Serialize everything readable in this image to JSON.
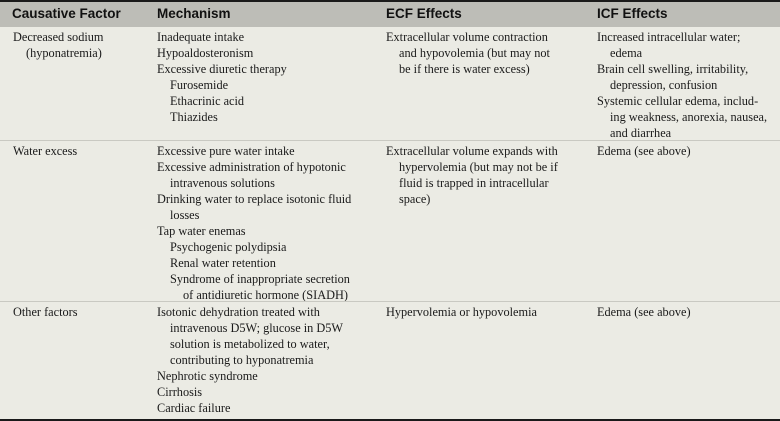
{
  "table": {
    "headers": {
      "cause": "Causative Factor",
      "mechanism": "Mechanism",
      "ecf": "ECF Effects",
      "icf": "ICF Effects"
    },
    "rows": [
      {
        "cause": [
          "Decreased sodium",
          "(hyponatremia)"
        ],
        "mechanism": [
          "Inadequate intake",
          "Hypoaldosteronism",
          "Excessive diuretic therapy",
          "Furosemide",
          "Ethacrinic acid",
          "Thiazides"
        ],
        "ecf": [
          "Extracellular volume contraction",
          "and hypovolemia (but may not",
          "be if there is water excess)"
        ],
        "icf": [
          "Increased intracellular water;",
          "edema",
          "Brain cell swelling, irritability,",
          "depression, confusion",
          "Systemic cellular edema, includ-",
          "ing weakness, anorexia, nausea,",
          "and diarrhea"
        ]
      },
      {
        "cause": [
          "Water excess"
        ],
        "mechanism": [
          "Excessive pure water intake",
          "Excessive administration of hypotonic",
          "intravenous solutions",
          "Drinking water to replace isotonic fluid",
          "losses",
          "Tap water enemas",
          "Psychogenic polydipsia",
          "Renal water retention",
          "Syndrome of inappropriate secretion",
          "of antidiuretic hormone (SIADH)"
        ],
        "ecf": [
          "Extracellular volume expands with",
          "hypervolemia (but may not be if",
          "fluid is trapped in intracellular",
          "space)"
        ],
        "icf": [
          "Edema (see above)"
        ]
      },
      {
        "cause": [
          "Other factors"
        ],
        "mechanism": [
          "Isotonic dehydration treated with",
          "intravenous D5W; glucose in D5W",
          "solution is metabolized to water,",
          "contributing to hyponatremia",
          "Nephrotic syndrome",
          "Cirrhosis",
          "Cardiac failure"
        ],
        "ecf": [
          "Hypervolemia or hypovolemia"
        ],
        "icf": [
          "Edema (see above)"
        ]
      }
    ]
  }
}
